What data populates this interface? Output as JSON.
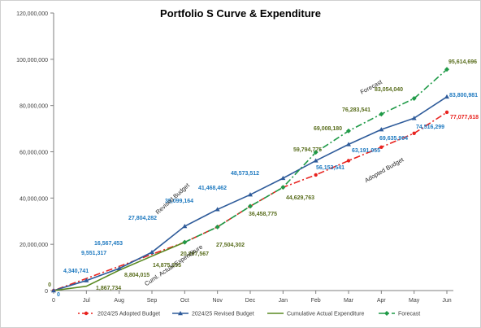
{
  "chart_data": {
    "type": "line",
    "title": "Portfolio S Curve & Expenditure",
    "categories": [
      "0",
      "Jul",
      "Aug",
      "Sep",
      "Oct",
      "Nov",
      "Dec",
      "Jan",
      "Feb",
      "Mar",
      "Apr",
      "May",
      "Jun"
    ],
    "ylim": [
      0,
      120000000
    ],
    "yticks": [
      "0",
      "20,000,000",
      "40,000,000",
      "60,000,000",
      "80,000,000",
      "100,000,000",
      "120,000,000"
    ],
    "grid": false,
    "legend_position": "bottom",
    "series": [
      {
        "name": "2024/25 Adopted Budget",
        "color": "#e8231f",
        "values": [
          0,
          null,
          null,
          null,
          20897567,
          27504302,
          36458775,
          44629763,
          50000000,
          56153541,
          62000000,
          68000000,
          77077618
        ]
      },
      {
        "name": "2024/25 Revised Budget",
        "color": "#2e5b9a",
        "values": [
          0,
          4340741,
          9551317,
          16567453,
          27804282,
          35099164,
          41468462,
          48573512,
          56153541,
          63191955,
          69635904,
          74516299,
          83800981
        ]
      },
      {
        "name": "Cumulative Actual Expenditure",
        "color": "#5a8a22",
        "values": [
          0,
          1867734,
          8804015,
          14875395,
          20897567,
          null,
          null,
          null,
          null,
          null,
          null,
          null,
          null
        ]
      },
      {
        "name": "Forecast",
        "color": "#1f9a47",
        "values": [
          null,
          null,
          null,
          null,
          20897567,
          27504302,
          36458775,
          44629763,
          59794775,
          69008180,
          76283541,
          83054040,
          95614696
        ]
      }
    ],
    "data_labels": [
      {
        "text": "0",
        "color": "#5a6e1e"
      },
      {
        "text": "0",
        "color": "#1f7ac0"
      },
      {
        "text": "4,340,741",
        "color": "#1f7ac0"
      },
      {
        "text": "9,551,317",
        "color": "#1f7ac0"
      },
      {
        "text": "16,567,453",
        "color": "#1f7ac0"
      },
      {
        "text": "27,804,282",
        "color": "#1f7ac0"
      },
      {
        "text": "35,099,164",
        "color": "#1f7ac0"
      },
      {
        "text": "41,468,462",
        "color": "#1f7ac0"
      },
      {
        "text": "48,573,512",
        "color": "#1f7ac0"
      },
      {
        "text": "56,153,541",
        "color": "#1f7ac0"
      },
      {
        "text": "63,191,955",
        "color": "#1f7ac0"
      },
      {
        "text": "69,635,904",
        "color": "#1f7ac0"
      },
      {
        "text": "74,516,299",
        "color": "#1f7ac0"
      },
      {
        "text": "83,800,981",
        "color": "#1f7ac0"
      },
      {
        "text": "1,867,734",
        "color": "#5a6e1e"
      },
      {
        "text": "8,804,015",
        "color": "#5a6e1e"
      },
      {
        "text": "14,875,395",
        "color": "#5a6e1e"
      },
      {
        "text": "20,897,567",
        "color": "#5a6e1e"
      },
      {
        "text": "27,504,302",
        "color": "#5a6e1e"
      },
      {
        "text": "36,458,775",
        "color": "#5a6e1e"
      },
      {
        "text": "44,629,763",
        "color": "#5a6e1e"
      },
      {
        "text": "59,794,775",
        "color": "#5a6e1e"
      },
      {
        "text": "69,008,180",
        "color": "#5a6e1e"
      },
      {
        "text": "76,283,541",
        "color": "#5a6e1e"
      },
      {
        "text": "83,054,040",
        "color": "#5a6e1e"
      },
      {
        "text": "95,614,696",
        "color": "#5a6e1e"
      },
      {
        "text": "77,077,618",
        "color": "#e8231f"
      }
    ],
    "annotations": [
      "Revised Budget",
      "Cuml. Actual Expenditure",
      "Forecast",
      "Adopted Budget"
    ]
  }
}
